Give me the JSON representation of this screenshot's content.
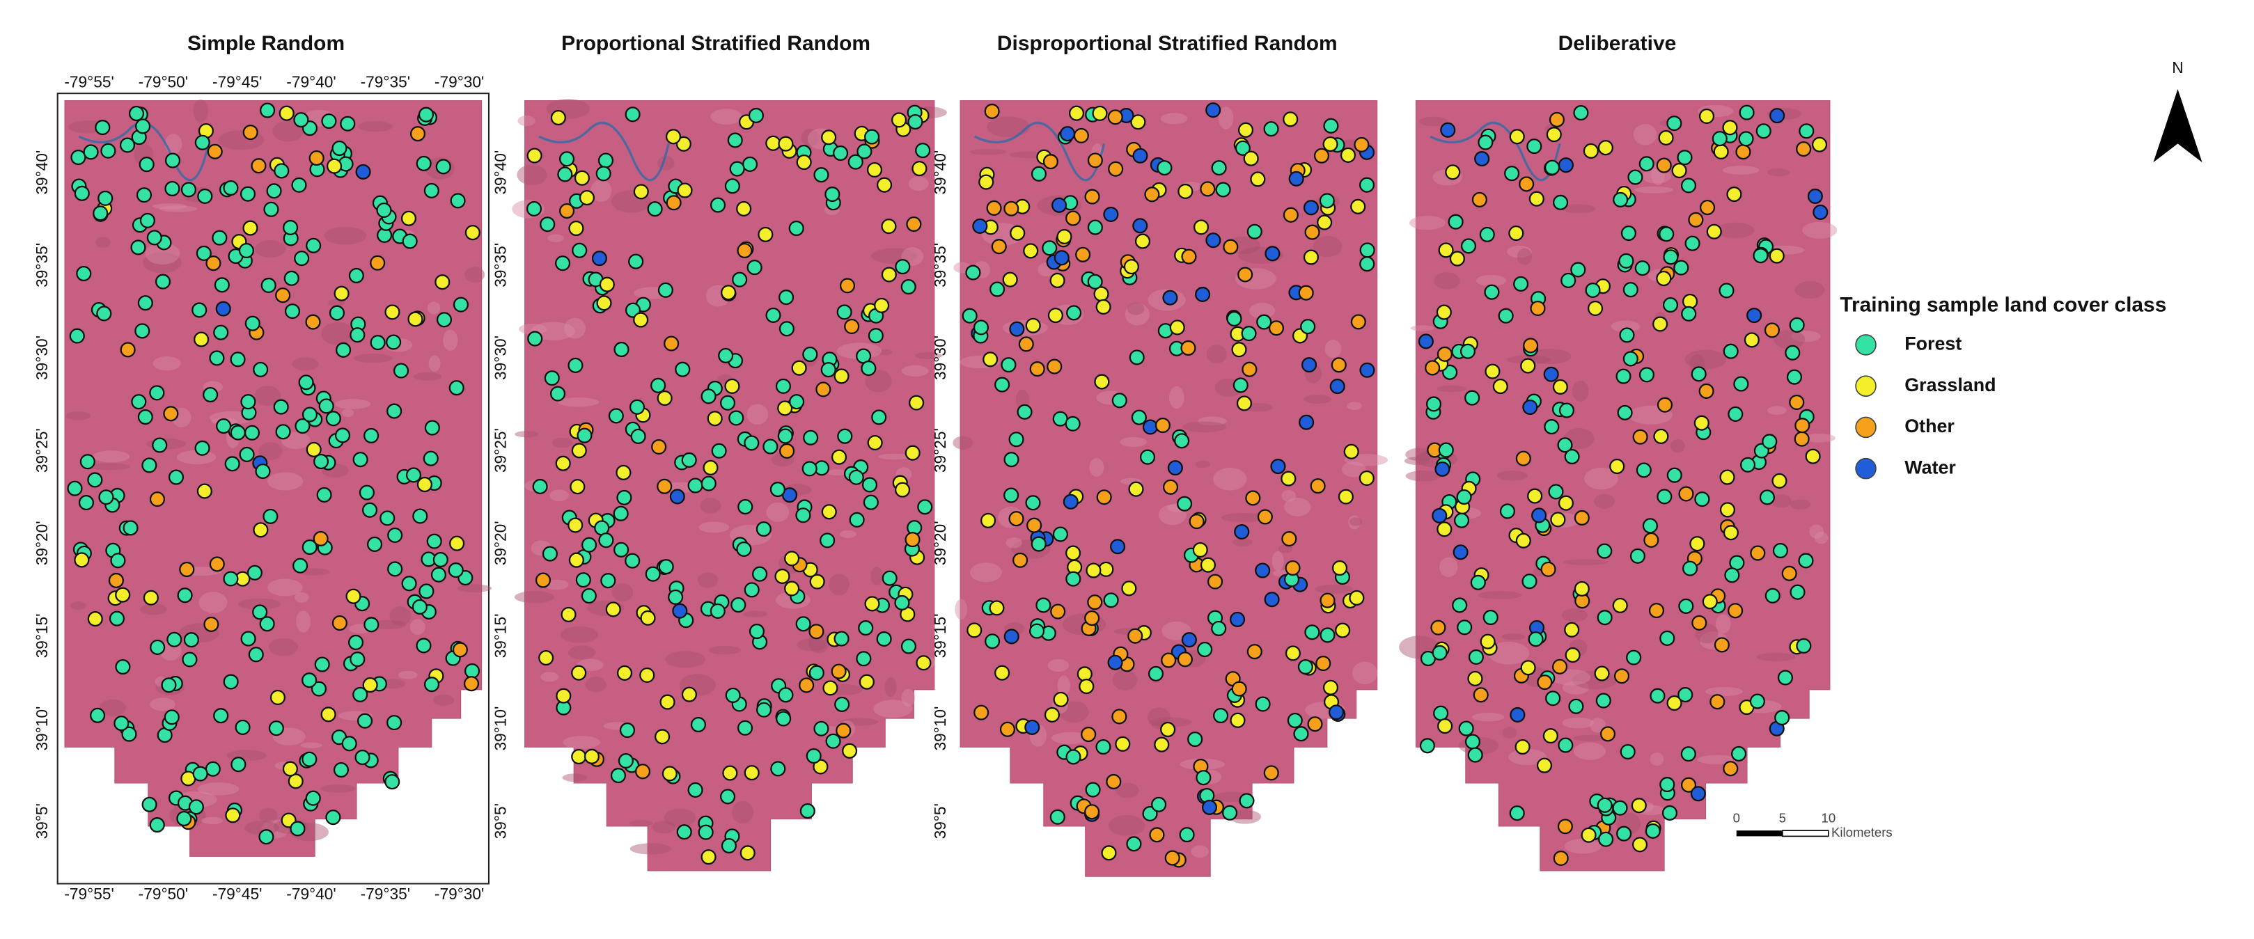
{
  "panels": [
    {
      "title": "Simple Random"
    },
    {
      "title": "Proportional Stratified Random"
    },
    {
      "title": "Disproportional Stratified Random"
    },
    {
      "title": "Deliberative"
    }
  ],
  "longitude_ticks": [
    "-79°55'",
    "-79°50'",
    "-79°45'",
    "-79°40'",
    "-79°35'",
    "-79°30'"
  ],
  "latitude_ticks": [
    "39°40'",
    "39°35'",
    "39°30'",
    "39°25'",
    "39°20'",
    "39°15'",
    "39°10'",
    "39°5'"
  ],
  "legend": {
    "title": "Training sample land cover class",
    "items": [
      {
        "label": "Forest",
        "color": "#34e3a4"
      },
      {
        "label": "Grassland",
        "color": "#f4ef2a"
      },
      {
        "label": "Other",
        "color": "#f6a01c"
      },
      {
        "label": "Water",
        "color": "#1f5ed8"
      }
    ]
  },
  "scale_bar": {
    "ticks": [
      "0",
      "5",
      "10"
    ],
    "unit": "Kilometers"
  },
  "north_arrow": "N"
}
